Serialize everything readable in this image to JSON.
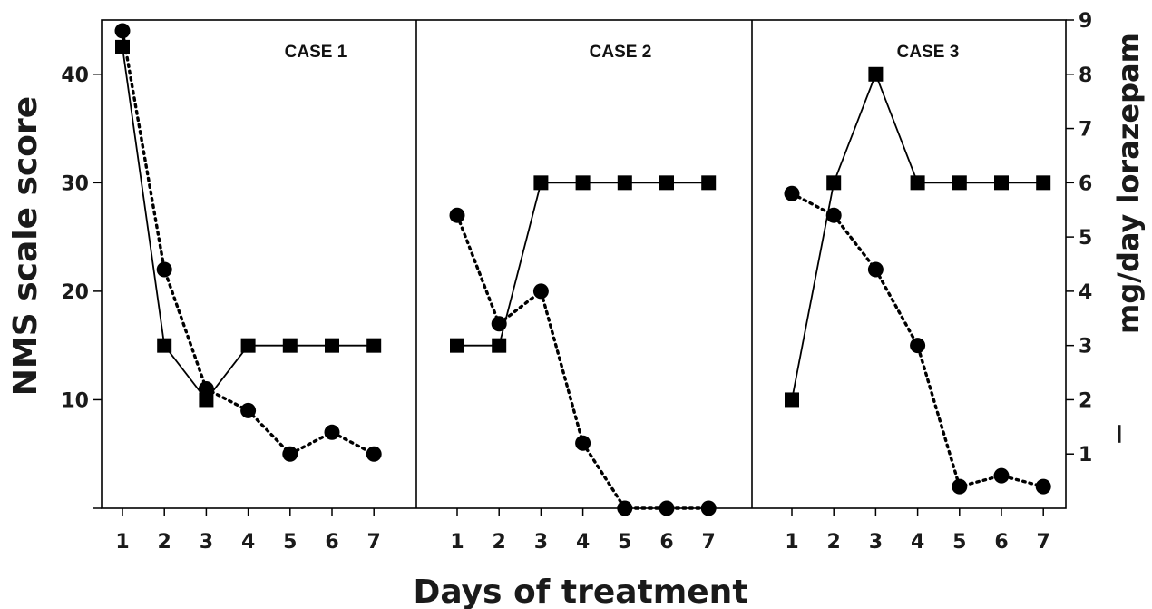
{
  "chart_data": {
    "type": "line",
    "xlabel": "Days of treatment",
    "ylabel_left": "NMS scale score",
    "ylabel_right": "mg/day lorazepam",
    "right_axis_marker": "—",
    "y_left_ticks": [
      "10",
      "20",
      "30",
      "40"
    ],
    "y_left_range": [
      0,
      45
    ],
    "y_right_ticks": [
      "1",
      "2",
      "3",
      "4",
      "5",
      "6",
      "7",
      "8",
      "9"
    ],
    "y_right_range": [
      0,
      9
    ],
    "x_ticks": [
      "1",
      "2",
      "3",
      "4",
      "5",
      "6",
      "7"
    ],
    "grid": false,
    "panels": [
      {
        "title": "CASE 1",
        "nms_score": [
          44,
          22,
          11,
          9,
          5,
          7,
          5
        ],
        "lorazepam_mg": [
          8.5,
          3,
          2,
          3,
          3,
          3,
          3
        ]
      },
      {
        "title": "CASE 2",
        "nms_score": [
          27,
          17,
          20,
          6,
          0,
          0,
          0
        ],
        "lorazepam_mg": [
          3,
          3,
          6,
          6,
          6,
          6,
          6
        ]
      },
      {
        "title": "CASE 3",
        "nms_score": [
          29,
          27,
          22,
          15,
          2,
          3,
          2
        ],
        "lorazepam_mg": [
          2,
          6,
          8,
          6,
          6,
          6,
          6
        ]
      }
    ],
    "series_styles": {
      "nms_score": {
        "line": "dotted",
        "marker": "circle",
        "axis": "left",
        "color": "#000000"
      },
      "lorazepam_mg": {
        "line": "solid",
        "marker": "square",
        "axis": "right",
        "color": "#000000"
      }
    }
  }
}
